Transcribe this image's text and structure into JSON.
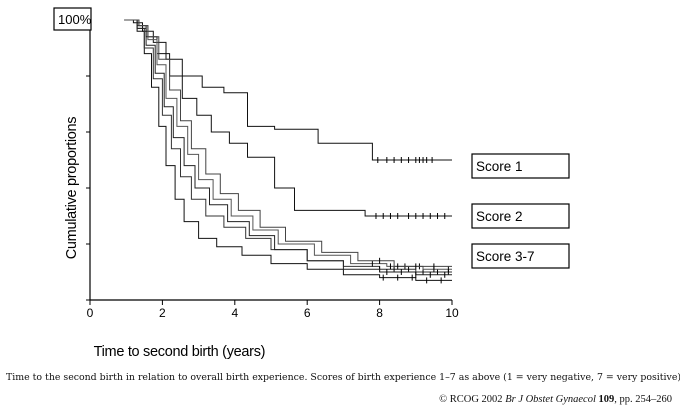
{
  "chart_data": {
    "type": "line",
    "title": "",
    "xlabel": "Time to second birth (years)",
    "ylabel": "Cumulative proportions",
    "y_top_label": "100%",
    "xlim": [
      0,
      10
    ],
    "ylim": [
      0,
      1
    ],
    "x_ticks": [
      0,
      2,
      4,
      6,
      8,
      10
    ],
    "y_ticks": [
      0,
      0.2,
      0.4,
      0.6,
      0.8,
      1.0
    ],
    "grid": false,
    "legend": "boxed labels at right end of curves",
    "series": [
      {
        "name": "Score 1",
        "curve_count": 1,
        "x": [
          0.95,
          1.05,
          1.2,
          1.45,
          1.75,
          2.1,
          2.55,
          3.1,
          3.7,
          4.35,
          5.1,
          6.3,
          7.8,
          10.0
        ],
        "y": [
          1.0,
          1.0,
          0.99,
          0.96,
          0.92,
          0.86,
          0.8,
          0.76,
          0.74,
          0.62,
          0.61,
          0.56,
          0.5,
          0.5
        ],
        "censor_x": [
          7.95,
          8.2,
          8.4,
          8.6,
          8.8,
          9.0,
          9.1,
          9.2,
          9.3,
          9.45
        ]
      },
      {
        "name": "Score 2",
        "curve_count": 1,
        "x": [
          0.95,
          1.1,
          1.3,
          1.55,
          1.85,
          2.2,
          2.55,
          2.95,
          3.35,
          3.85,
          4.35,
          5.1,
          5.65,
          7.6,
          10.0
        ],
        "y": [
          1.0,
          1.0,
          0.98,
          0.94,
          0.88,
          0.8,
          0.72,
          0.66,
          0.6,
          0.56,
          0.51,
          0.4,
          0.32,
          0.3,
          0.3
        ],
        "censor_x": [
          7.9,
          8.1,
          8.3,
          8.5,
          8.8,
          9.0,
          9.2,
          9.4,
          9.6,
          9.8
        ]
      },
      {
        "name": "Score 3-7",
        "curve_count": 5,
        "curves": [
          {
            "x": [
              0.95,
              1.1,
              1.3,
              1.5,
              1.7,
              1.9,
              2.1,
              2.35,
              2.6,
              3.0,
              3.5,
              4.2,
              5.0,
              6.0,
              7.0,
              8.0,
              9.0,
              10.0
            ],
            "y": [
              1.0,
              1.0,
              0.96,
              0.88,
              0.76,
              0.62,
              0.48,
              0.36,
              0.28,
              0.22,
              0.19,
              0.16,
              0.13,
              0.11,
              0.09,
              0.08,
              0.07,
              0.07
            ],
            "censor_x": [
              8.1,
              8.5,
              8.9,
              9.3,
              9.7
            ]
          },
          {
            "x": [
              0.95,
              1.1,
              1.3,
              1.5,
              1.75,
              2.0,
              2.25,
              2.5,
              2.8,
              3.2,
              3.7,
              4.3,
              5.0,
              6.0,
              7.0,
              8.0,
              9.0,
              10.0
            ],
            "y": [
              1.0,
              1.0,
              0.97,
              0.9,
              0.79,
              0.66,
              0.54,
              0.44,
              0.36,
              0.3,
              0.26,
              0.22,
              0.18,
              0.14,
              0.12,
              0.11,
              0.1,
              0.1
            ],
            "censor_x": [
              8.0,
              8.4,
              8.8,
              9.2,
              9.6,
              9.9
            ]
          },
          {
            "x": [
              0.95,
              1.1,
              1.3,
              1.55,
              1.8,
              2.05,
              2.3,
              2.6,
              2.9,
              3.3,
              3.8,
              4.4,
              5.1,
              6.0,
              7.0,
              8.0,
              9.0,
              10.0
            ],
            "y": [
              1.0,
              1.0,
              0.97,
              0.91,
              0.81,
              0.69,
              0.58,
              0.48,
              0.4,
              0.34,
              0.28,
              0.23,
              0.18,
              0.14,
              0.11,
              0.1,
              0.09,
              0.09
            ],
            "censor_x": [
              8.2,
              8.6,
              9.0,
              9.4,
              9.8
            ]
          },
          {
            "x": [
              0.95,
              1.1,
              1.35,
              1.6,
              1.85,
              2.1,
              2.4,
              2.7,
              3.0,
              3.4,
              3.9,
              4.5,
              5.2,
              6.2,
              7.2,
              8.2,
              9.2,
              10.0
            ],
            "y": [
              1.0,
              1.0,
              0.98,
              0.93,
              0.84,
              0.72,
              0.62,
              0.52,
              0.43,
              0.36,
              0.3,
              0.25,
              0.2,
              0.16,
              0.13,
              0.12,
              0.11,
              0.11
            ],
            "censor_x": [
              7.8,
              8.3,
              8.7,
              9.1,
              9.5,
              9.9
            ]
          },
          {
            "x": [
              0.95,
              1.1,
              1.35,
              1.6,
              1.9,
              2.2,
              2.5,
              2.8,
              3.2,
              3.6,
              4.1,
              4.7,
              5.4,
              6.4,
              7.4,
              8.4,
              9.4,
              10.0
            ],
            "y": [
              1.0,
              1.0,
              0.98,
              0.94,
              0.86,
              0.75,
              0.64,
              0.54,
              0.45,
              0.38,
              0.32,
              0.26,
              0.21,
              0.17,
              0.14,
              0.12,
              0.12,
              0.12
            ],
            "censor_x": [
              8.0,
              8.5,
              9.0,
              9.5
            ]
          }
        ]
      }
    ]
  },
  "caption": "Time to the second birth in relation to overall birth experience. Scores of birth experience 1–7 as above (1 = very negative, 7 = very positive).",
  "credit": {
    "prefix": "© RCOG 2002 ",
    "journal": "Br J Obstet Gynaecol",
    "space": " ",
    "volume": "109",
    "pages": ", pp. 254–260"
  }
}
